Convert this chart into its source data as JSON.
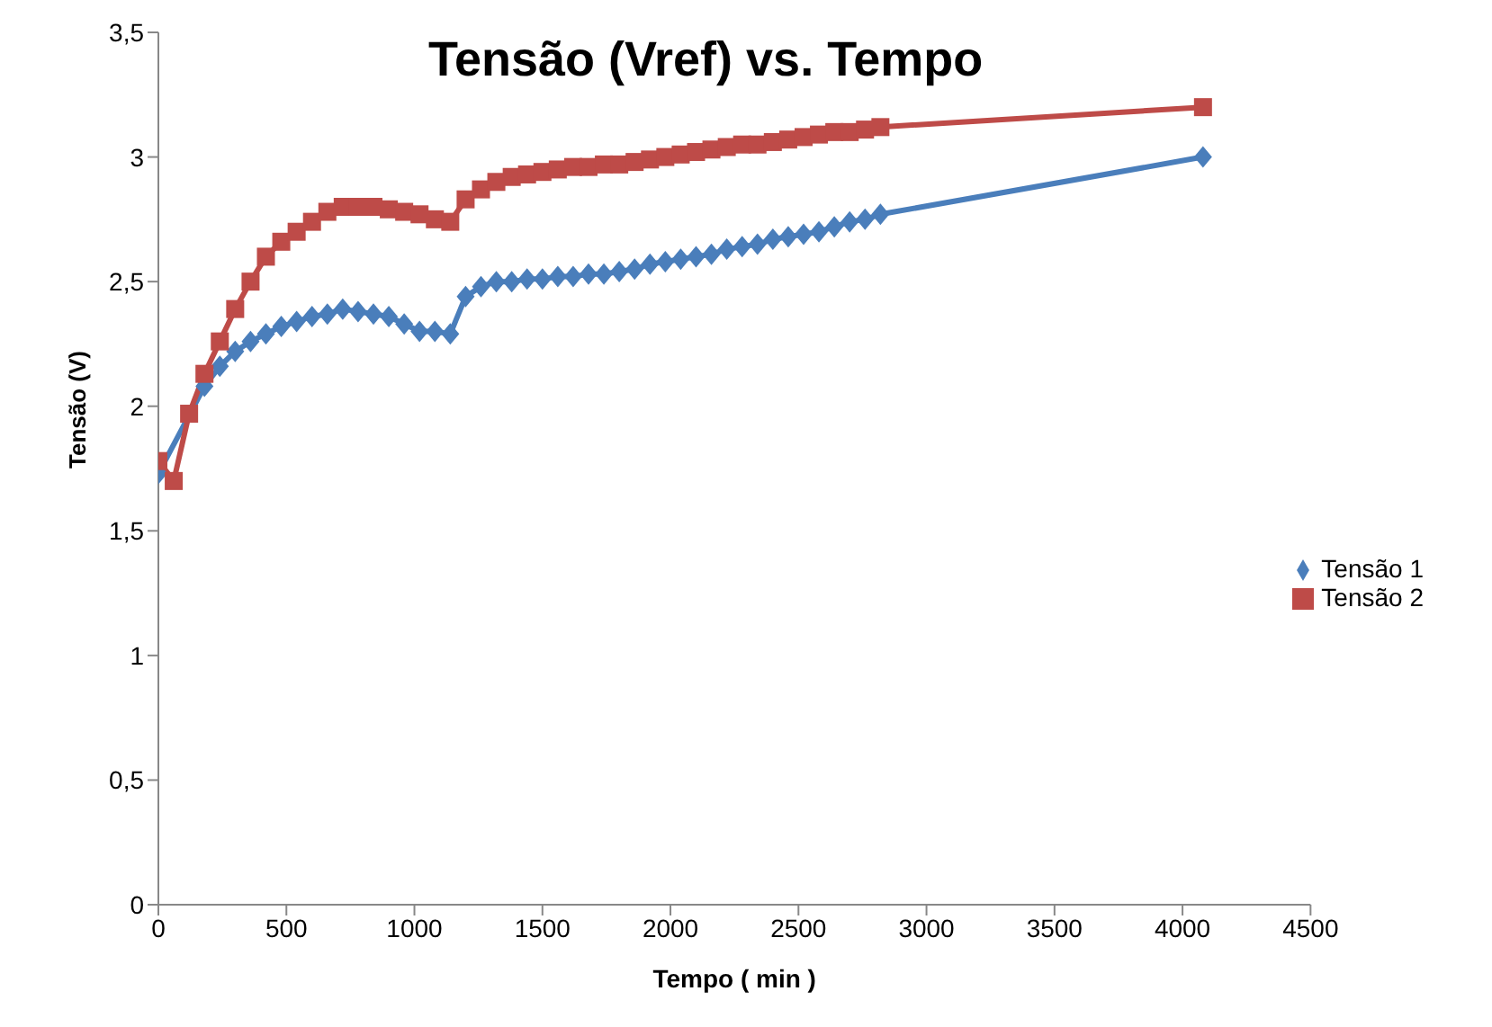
{
  "chart_data": {
    "type": "line",
    "title": "Tensão (Vref) vs. Tempo",
    "xlabel": "Tempo ( min )",
    "ylabel": "Tensão (V)",
    "x": [
      0,
      60,
      120,
      180,
      240,
      300,
      360,
      420,
      480,
      540,
      600,
      660,
      720,
      780,
      840,
      900,
      960,
      1020,
      1080,
      1140,
      1200,
      1260,
      1320,
      1380,
      1440,
      1500,
      1560,
      1620,
      1680,
      1740,
      1800,
      1860,
      1920,
      1980,
      2040,
      2100,
      2160,
      2220,
      2280,
      2340,
      2400,
      2460,
      2520,
      2580,
      2640,
      2700,
      2760,
      2820,
      4080
    ],
    "series": [
      {
        "name": "Tensão 1",
        "color": "#4a7ebb",
        "marker": "diamond",
        "values": [
          1.73,
          null,
          null,
          2.08,
          2.16,
          2.22,
          2.26,
          2.29,
          2.32,
          2.34,
          2.36,
          2.37,
          2.39,
          2.38,
          2.37,
          2.36,
          2.33,
          2.3,
          2.3,
          2.29,
          2.44,
          2.48,
          2.5,
          2.5,
          2.51,
          2.51,
          2.52,
          2.52,
          2.53,
          2.53,
          2.54,
          2.55,
          2.57,
          2.58,
          2.59,
          2.6,
          2.61,
          2.63,
          2.64,
          2.65,
          2.67,
          2.68,
          2.69,
          2.7,
          2.72,
          2.74,
          2.75,
          2.77,
          3.0
        ]
      },
      {
        "name": "Tensão 2",
        "color": "#be4b48",
        "marker": "square",
        "values": [
          1.78,
          1.7,
          1.97,
          2.13,
          2.26,
          2.39,
          2.5,
          2.6,
          2.66,
          2.7,
          2.74,
          2.78,
          2.8,
          2.8,
          2.8,
          2.79,
          2.78,
          2.77,
          2.75,
          2.74,
          2.83,
          2.87,
          2.9,
          2.92,
          2.93,
          2.94,
          2.95,
          2.96,
          2.96,
          2.97,
          2.97,
          2.98,
          2.99,
          3.0,
          3.01,
          3.02,
          3.03,
          3.04,
          3.05,
          3.05,
          3.06,
          3.07,
          3.08,
          3.09,
          3.1,
          3.1,
          3.11,
          3.12,
          3.2
        ]
      }
    ],
    "xlim": [
      0,
      4500
    ],
    "xticks": [
      0,
      500,
      1000,
      1500,
      2000,
      2500,
      3000,
      3500,
      4000,
      4500
    ],
    "ylim": [
      0,
      3.5
    ],
    "yticks": [
      {
        "value": 0,
        "label": "0"
      },
      {
        "value": 0.5,
        "label": "0,5"
      },
      {
        "value": 1,
        "label": "1"
      },
      {
        "value": 1.5,
        "label": "1,5"
      },
      {
        "value": 2,
        "label": "2"
      },
      {
        "value": 2.5,
        "label": "2,5"
      },
      {
        "value": 3,
        "label": "3"
      },
      {
        "value": 3.5,
        "label": "3,5"
      }
    ],
    "grid": false,
    "legend": "right"
  }
}
